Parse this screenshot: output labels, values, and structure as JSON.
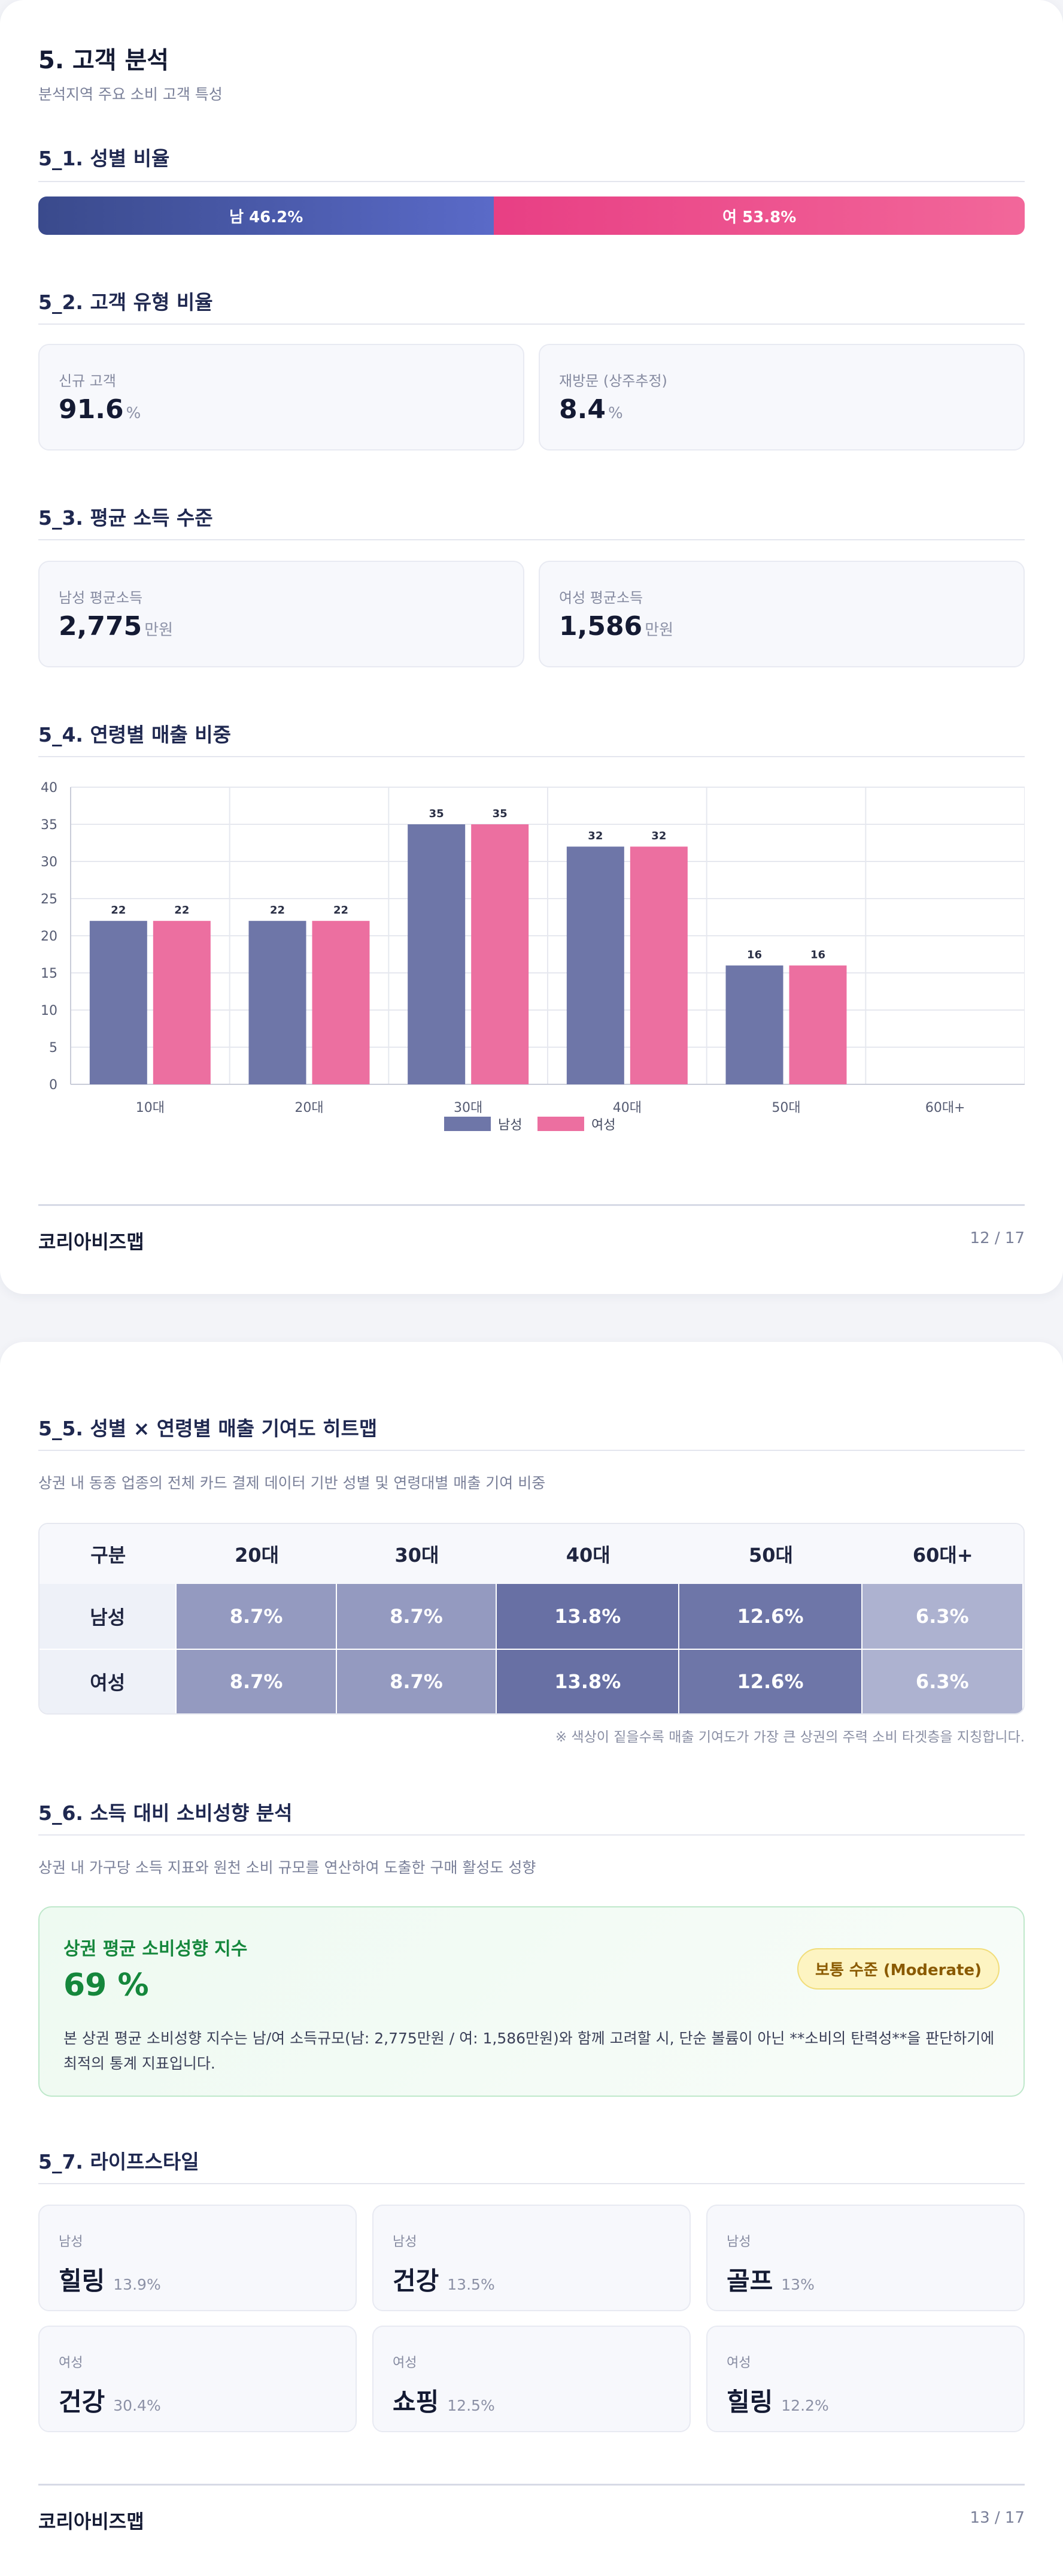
{
  "page1": {
    "title": "5. 고객 분석",
    "subtitle": "분석지역 주요 소비 고객 특성",
    "gender": {
      "heading": "5_1. 성별 비율",
      "male_label": "남 46.2%",
      "female_label": "여 53.8%",
      "male_pct": 46.2,
      "female_pct": 53.8
    },
    "customer_type": {
      "heading": "5_2. 고객 유형 비율",
      "new_label": "신규 고객",
      "new_value": "91.6",
      "new_unit": "%",
      "return_label": "재방문 (상주추정)",
      "return_value": "8.4",
      "return_unit": "%"
    },
    "income": {
      "heading": "5_3. 평균 소득 수준",
      "male_label": "남성 평균소득",
      "male_value": "2,775",
      "male_unit": "만원",
      "female_label": "여성 평균소득",
      "female_value": "1,586",
      "female_unit": "만원"
    },
    "age_sales_heading": "5_4. 연령별 매출 비중",
    "footer_brand": "코리아비즈맵",
    "footer_page": "12 / 17"
  },
  "chart_data": {
    "type": "bar",
    "categories": [
      "10대",
      "20대",
      "30대",
      "40대",
      "50대",
      "60대+"
    ],
    "series": [
      {
        "name": "남성",
        "values": [
          22,
          22,
          35,
          32,
          16,
          0
        ],
        "color": "#6e76a8"
      },
      {
        "name": "여성",
        "values": [
          22,
          22,
          35,
          32,
          16,
          0
        ],
        "color": "#ec6fa0"
      }
    ],
    "data_labels": [
      [
        "22",
        "22",
        "35",
        "32",
        "16",
        ""
      ],
      [
        "22",
        "22",
        "35",
        "32",
        "16",
        ""
      ]
    ],
    "yticks": [
      0,
      5,
      10,
      15,
      20,
      25,
      30,
      35,
      40
    ],
    "ylim": [
      0,
      40
    ],
    "grid": true,
    "legend_position": "bottom-center"
  },
  "page2": {
    "heatmap": {
      "heading": "5_5. 성별 × 연령별 매출 기여도 히트맵",
      "desc": "상권 내 동종 업종의 전체 카드 결제 데이터 기반 성별 및 연령대별 매출 기여 비중",
      "header": [
        "구분",
        "20대",
        "30대",
        "40대",
        "50대",
        "60대+"
      ],
      "rows": [
        {
          "label": "남성",
          "cells": [
            "8.7%",
            "8.7%",
            "13.8%",
            "12.6%",
            "6.3%"
          ]
        },
        {
          "label": "여성",
          "cells": [
            "8.7%",
            "8.7%",
            "13.8%",
            "12.6%",
            "6.3%"
          ]
        }
      ],
      "cell_colors": [
        "#949ac0",
        "#949ac0",
        "#6870a4",
        "#6e76a8",
        "#adb2d0"
      ],
      "note": "※ 색상이 짙을수록 매출 기여도가 가장 큰 상권의 주력 소비 타겟층을 지칭합니다."
    },
    "propensity": {
      "heading": "5_6. 소득 대비 소비성향 분석",
      "desc": "상권 내 가구당 소득 지표와 원천 소비 규모를 연산하여 도출한 구매 활성도 성향",
      "card_title": "상권 평균 소비성향 지수",
      "value": "69 %",
      "badge": "보통 수준 (Moderate)",
      "body": "본 상권 평균 소비성향 지수는 남/여 소득규모(남: 2,775만원 / 여: 1,586만원)와 함께 고려할 시, 단순 볼륨이 아닌 **소비의 탄력성**을 판단하기에 최적의 통계 지표입니다."
    },
    "lifestyle": {
      "heading": "5_7. 라이프스타일",
      "items": [
        {
          "gender": "남성",
          "name": "힐링",
          "pct": "13.9%"
        },
        {
          "gender": "남성",
          "name": "건강",
          "pct": "13.5%"
        },
        {
          "gender": "남성",
          "name": "골프",
          "pct": "13%"
        },
        {
          "gender": "여성",
          "name": "건강",
          "pct": "30.4%"
        },
        {
          "gender": "여성",
          "name": "쇼핑",
          "pct": "12.5%"
        },
        {
          "gender": "여성",
          "name": "힐링",
          "pct": "12.2%"
        }
      ]
    },
    "footer_brand": "코리아비즈맵",
    "footer_page": "13 / 17"
  }
}
